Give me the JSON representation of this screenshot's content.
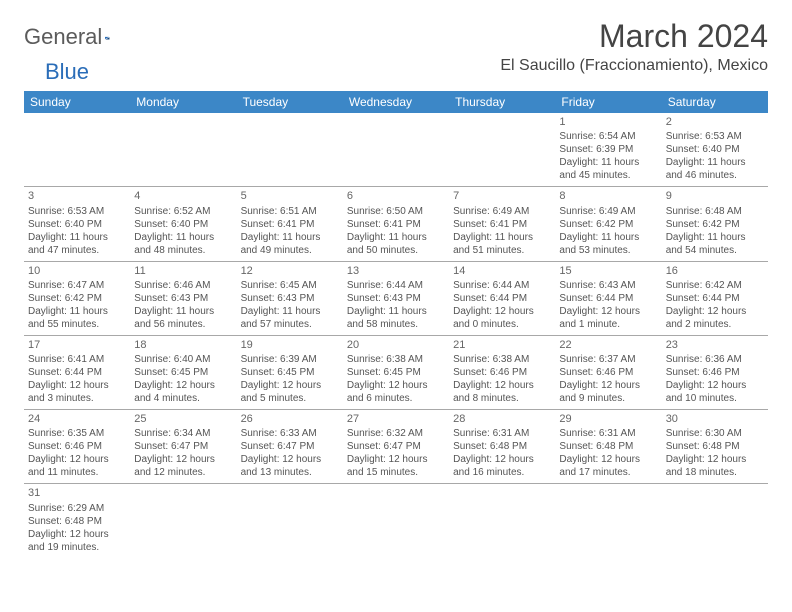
{
  "logo": {
    "main": "General",
    "blue": "Blue"
  },
  "title": "March 2024",
  "location": "El Saucillo (Fraccionamiento), Mexico",
  "header_bg": "#3c87c7",
  "header_fg": "#ffffff",
  "rule_color": "#a8a8a8",
  "text_color": "#555555",
  "weekdays": [
    "Sunday",
    "Monday",
    "Tuesday",
    "Wednesday",
    "Thursday",
    "Friday",
    "Saturday"
  ],
  "weeks": [
    [
      null,
      null,
      null,
      null,
      null,
      {
        "d": "1",
        "rise": "6:54 AM",
        "set": "6:39 PM",
        "day": "11 hours and 45 minutes."
      },
      {
        "d": "2",
        "rise": "6:53 AM",
        "set": "6:40 PM",
        "day": "11 hours and 46 minutes."
      }
    ],
    [
      {
        "d": "3",
        "rise": "6:53 AM",
        "set": "6:40 PM",
        "day": "11 hours and 47 minutes."
      },
      {
        "d": "4",
        "rise": "6:52 AM",
        "set": "6:40 PM",
        "day": "11 hours and 48 minutes."
      },
      {
        "d": "5",
        "rise": "6:51 AM",
        "set": "6:41 PM",
        "day": "11 hours and 49 minutes."
      },
      {
        "d": "6",
        "rise": "6:50 AM",
        "set": "6:41 PM",
        "day": "11 hours and 50 minutes."
      },
      {
        "d": "7",
        "rise": "6:49 AM",
        "set": "6:41 PM",
        "day": "11 hours and 51 minutes."
      },
      {
        "d": "8",
        "rise": "6:49 AM",
        "set": "6:42 PM",
        "day": "11 hours and 53 minutes."
      },
      {
        "d": "9",
        "rise": "6:48 AM",
        "set": "6:42 PM",
        "day": "11 hours and 54 minutes."
      }
    ],
    [
      {
        "d": "10",
        "rise": "6:47 AM",
        "set": "6:42 PM",
        "day": "11 hours and 55 minutes."
      },
      {
        "d": "11",
        "rise": "6:46 AM",
        "set": "6:43 PM",
        "day": "11 hours and 56 minutes."
      },
      {
        "d": "12",
        "rise": "6:45 AM",
        "set": "6:43 PM",
        "day": "11 hours and 57 minutes."
      },
      {
        "d": "13",
        "rise": "6:44 AM",
        "set": "6:43 PM",
        "day": "11 hours and 58 minutes."
      },
      {
        "d": "14",
        "rise": "6:44 AM",
        "set": "6:44 PM",
        "day": "12 hours and 0 minutes."
      },
      {
        "d": "15",
        "rise": "6:43 AM",
        "set": "6:44 PM",
        "day": "12 hours and 1 minute."
      },
      {
        "d": "16",
        "rise": "6:42 AM",
        "set": "6:44 PM",
        "day": "12 hours and 2 minutes."
      }
    ],
    [
      {
        "d": "17",
        "rise": "6:41 AM",
        "set": "6:44 PM",
        "day": "12 hours and 3 minutes."
      },
      {
        "d": "18",
        "rise": "6:40 AM",
        "set": "6:45 PM",
        "day": "12 hours and 4 minutes."
      },
      {
        "d": "19",
        "rise": "6:39 AM",
        "set": "6:45 PM",
        "day": "12 hours and 5 minutes."
      },
      {
        "d": "20",
        "rise": "6:38 AM",
        "set": "6:45 PM",
        "day": "12 hours and 6 minutes."
      },
      {
        "d": "21",
        "rise": "6:38 AM",
        "set": "6:46 PM",
        "day": "12 hours and 8 minutes."
      },
      {
        "d": "22",
        "rise": "6:37 AM",
        "set": "6:46 PM",
        "day": "12 hours and 9 minutes."
      },
      {
        "d": "23",
        "rise": "6:36 AM",
        "set": "6:46 PM",
        "day": "12 hours and 10 minutes."
      }
    ],
    [
      {
        "d": "24",
        "rise": "6:35 AM",
        "set": "6:46 PM",
        "day": "12 hours and 11 minutes."
      },
      {
        "d": "25",
        "rise": "6:34 AM",
        "set": "6:47 PM",
        "day": "12 hours and 12 minutes."
      },
      {
        "d": "26",
        "rise": "6:33 AM",
        "set": "6:47 PM",
        "day": "12 hours and 13 minutes."
      },
      {
        "d": "27",
        "rise": "6:32 AM",
        "set": "6:47 PM",
        "day": "12 hours and 15 minutes."
      },
      {
        "d": "28",
        "rise": "6:31 AM",
        "set": "6:48 PM",
        "day": "12 hours and 16 minutes."
      },
      {
        "d": "29",
        "rise": "6:31 AM",
        "set": "6:48 PM",
        "day": "12 hours and 17 minutes."
      },
      {
        "d": "30",
        "rise": "6:30 AM",
        "set": "6:48 PM",
        "day": "12 hours and 18 minutes."
      }
    ],
    [
      {
        "d": "31",
        "rise": "6:29 AM",
        "set": "6:48 PM",
        "day": "12 hours and 19 minutes."
      },
      null,
      null,
      null,
      null,
      null,
      null
    ]
  ]
}
